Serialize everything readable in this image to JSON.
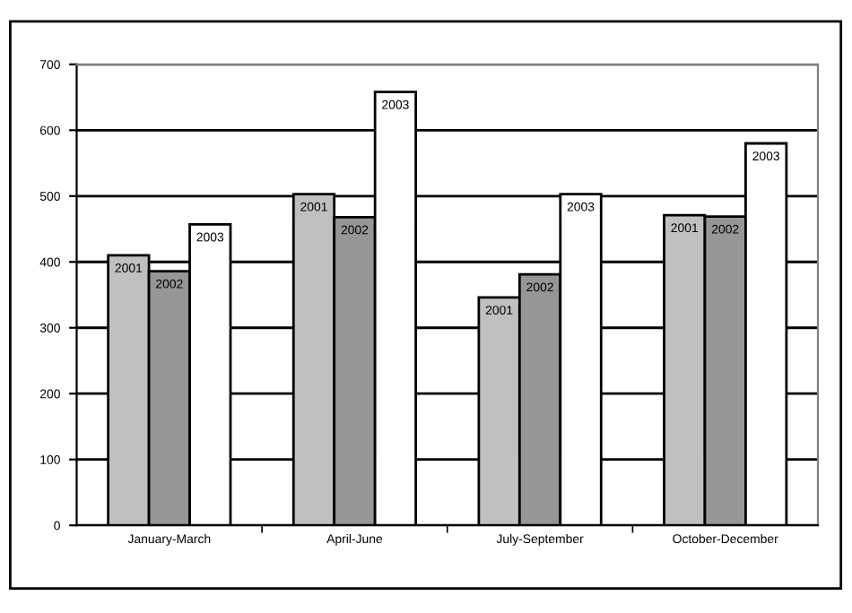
{
  "chart_data": {
    "type": "bar",
    "categories": [
      "January-March",
      "April-June",
      "July-September",
      "October-December"
    ],
    "series": [
      {
        "name": "2001",
        "color": "#c0c0c0",
        "values": [
          410,
          503,
          346,
          471
        ]
      },
      {
        "name": "2002",
        "color": "#969696",
        "values": [
          386,
          468,
          381,
          469
        ]
      },
      {
        "name": "2003",
        "color": "#ffffff",
        "values": [
          457,
          658,
          503,
          580
        ]
      }
    ],
    "ylim": [
      0,
      700
    ],
    "yticks": [
      0,
      100,
      200,
      300,
      400,
      500,
      600,
      700
    ],
    "grid": "y",
    "legend": false
  }
}
